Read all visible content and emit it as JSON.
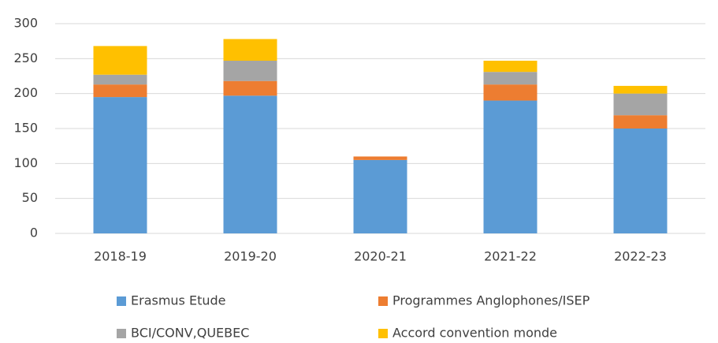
{
  "chart_data": {
    "type": "bar",
    "stacked": true,
    "categories": [
      "2018-19",
      "2019-20",
      "2020-21",
      "2021-22",
      "2022-23"
    ],
    "series": [
      {
        "name": "Erasmus Etude",
        "color": "#5b9bd5",
        "values": [
          195,
          197,
          105,
          190,
          150
        ]
      },
      {
        "name": "Programmes Anglophones/ISEP",
        "color": "#ed7d31",
        "values": [
          18,
          21,
          5,
          23,
          19
        ]
      },
      {
        "name": "BCI/CONV,QUEBEC",
        "color": "#a5a5a5",
        "values": [
          14,
          29,
          0,
          18,
          31
        ]
      },
      {
        "name": "Accord convention monde",
        "color": "#ffc000",
        "values": [
          41,
          31,
          0,
          16,
          11
        ]
      }
    ],
    "ylim": [
      0,
      300
    ],
    "yticks": [
      0,
      50,
      100,
      150,
      200,
      250,
      300
    ],
    "grid": true,
    "legend": "bottom"
  }
}
